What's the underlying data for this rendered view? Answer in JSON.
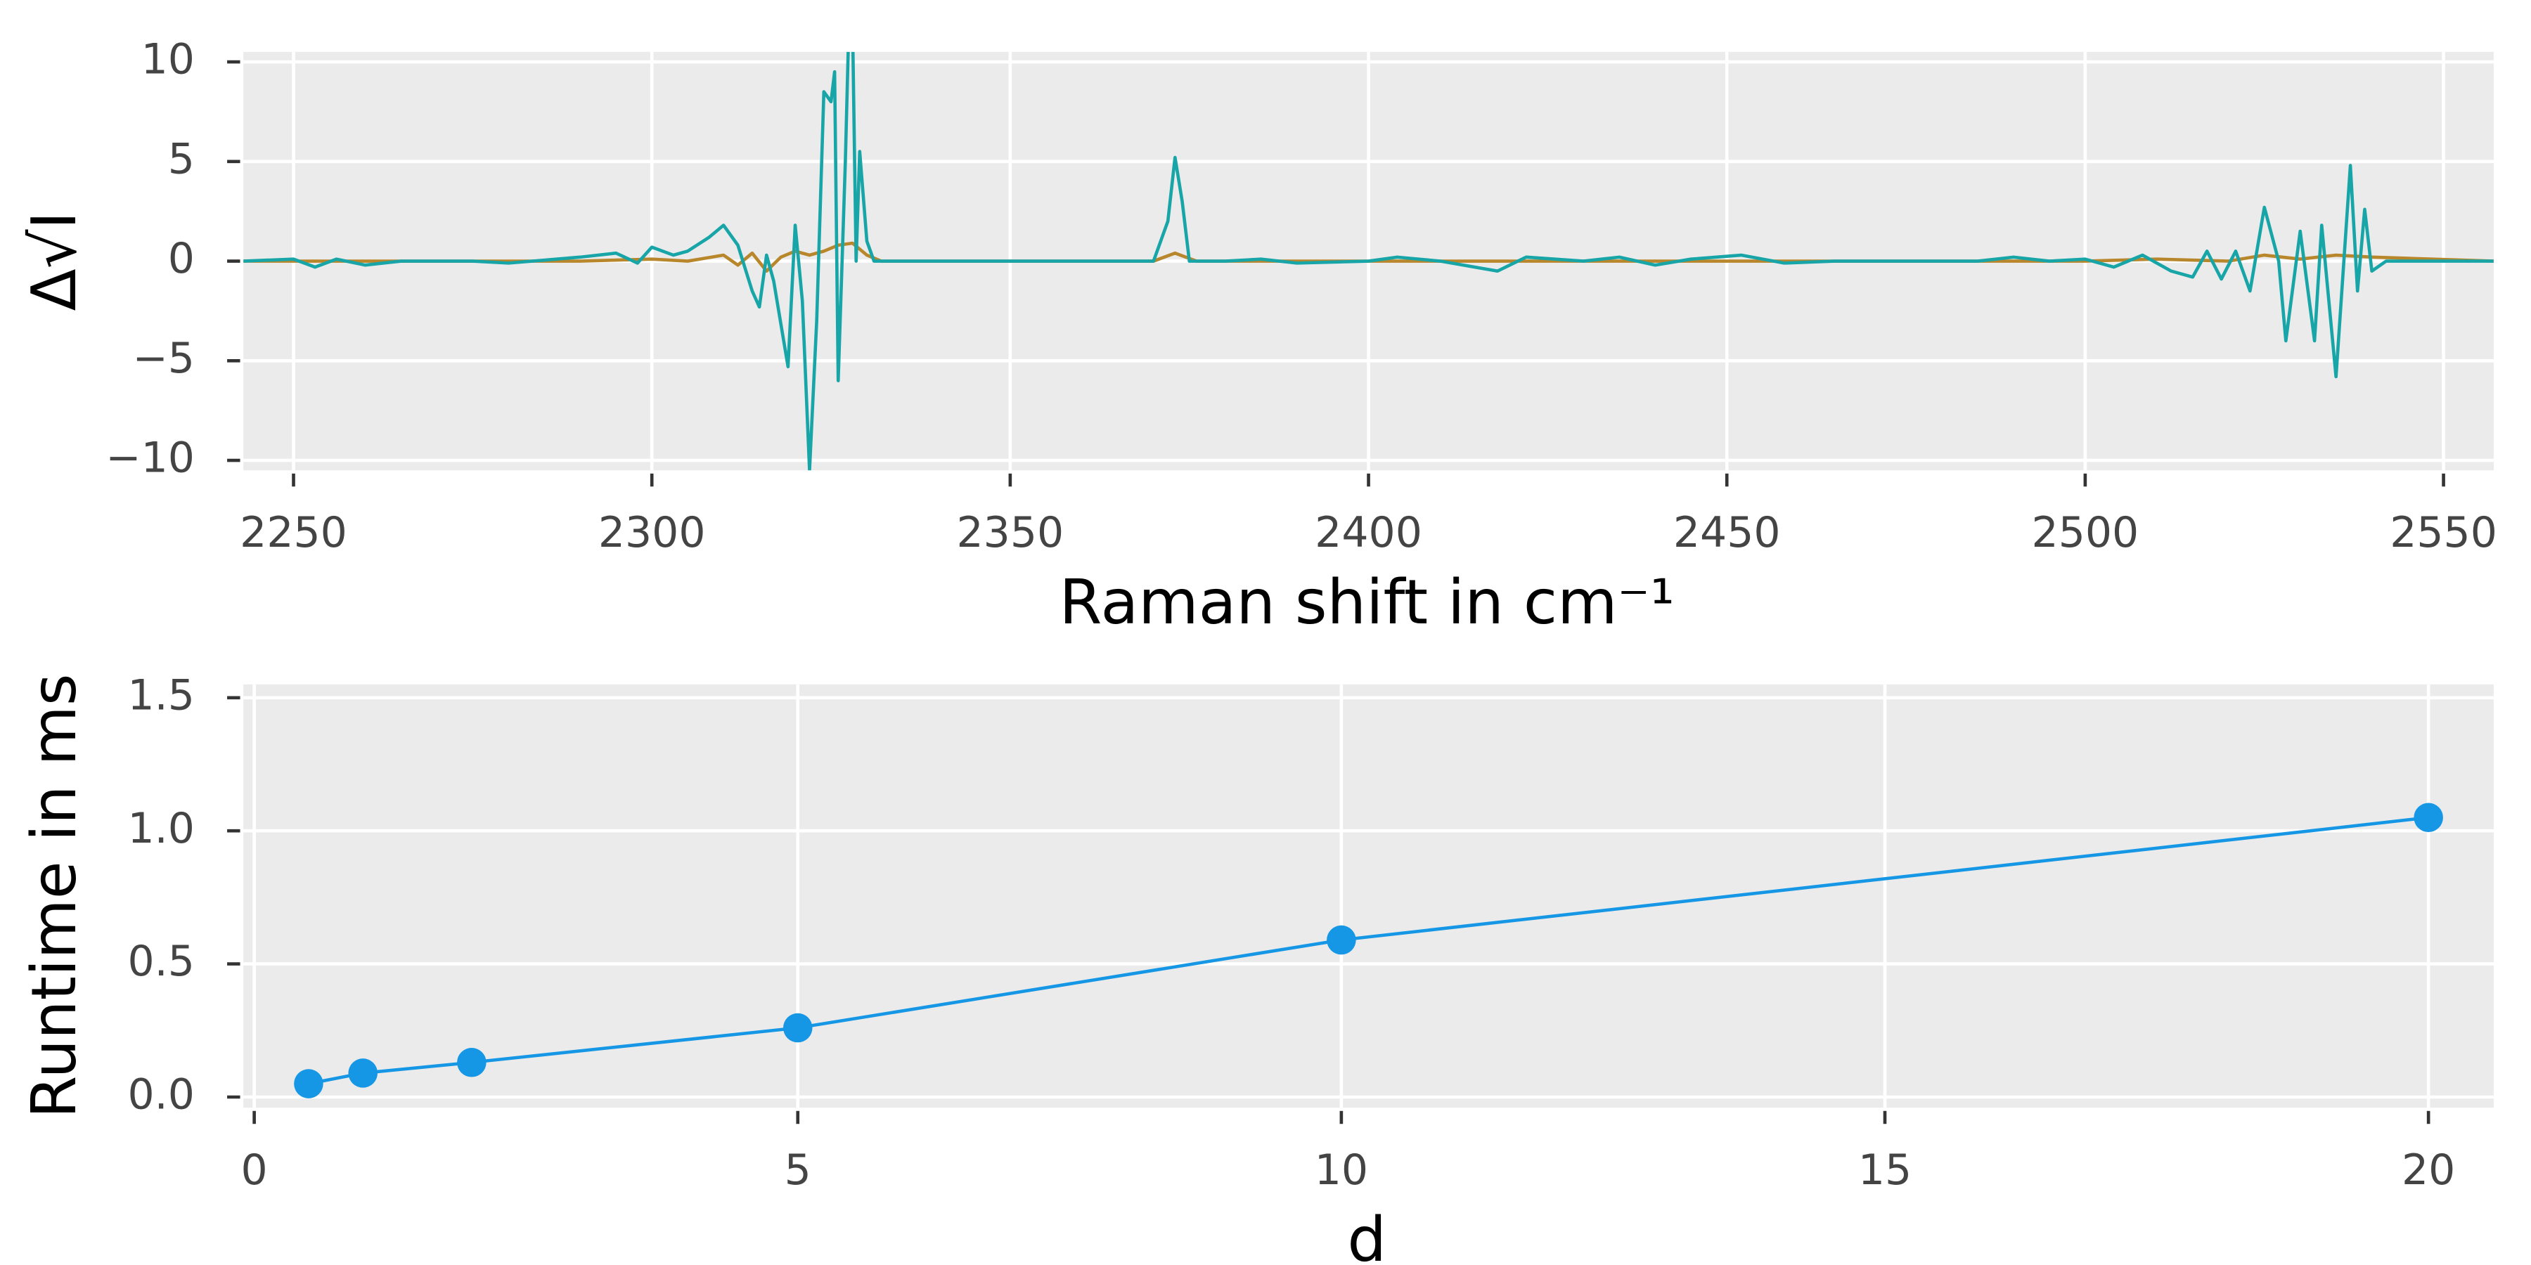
{
  "chart_data": [
    {
      "type": "line",
      "xlabel": "Raman shift in cm⁻¹",
      "ylabel": "Δ√I",
      "xlim": [
        2243,
        2557
      ],
      "ylim": [
        -10.5,
        10.5
      ],
      "xticks": [
        2250,
        2300,
        2350,
        2400,
        2450,
        2500,
        2550
      ],
      "yticks": [
        {
          "value": -10,
          "label": "−10"
        },
        {
          "value": -5,
          "label": "−5"
        },
        0,
        5,
        10
      ],
      "grid": true,
      "series": [
        {
          "color": "#b8862b",
          "x": [
            2243,
            2290,
            2300,
            2305,
            2310,
            2312,
            2314,
            2316,
            2318,
            2320,
            2322,
            2324,
            2326,
            2328,
            2330,
            2332,
            2370,
            2373,
            2376,
            2500,
            2510,
            2520,
            2525,
            2530,
            2535,
            2540,
            2557
          ],
          "values": [
            0,
            0,
            0.1,
            0,
            0.3,
            -0.2,
            0.4,
            -0.5,
            0.2,
            0.5,
            0.3,
            0.5,
            0.8,
            0.9,
            0.3,
            0,
            0,
            0.4,
            0,
            0,
            0.1,
            0,
            0.3,
            0.1,
            0.3,
            0.2,
            0
          ]
        },
        {
          "color": "#17a5a8",
          "x": [
            2243,
            2250,
            2253,
            2256,
            2260,
            2265,
            2275,
            2280,
            2290,
            2295,
            2298,
            2300,
            2303,
            2305,
            2308,
            2310,
            2312,
            2314,
            2315,
            2316,
            2317,
            2319,
            2320,
            2321,
            2322,
            2323,
            2324,
            2325,
            2325.5,
            2326,
            2327,
            2327.5,
            2328,
            2328.5,
            2329,
            2330,
            2331,
            2332,
            2340,
            2360,
            2370,
            2372,
            2373,
            2374,
            2375,
            2380,
            2385,
            2390,
            2400,
            2404,
            2410,
            2418,
            2422,
            2430,
            2435,
            2440,
            2445,
            2452,
            2458,
            2465,
            2475,
            2485,
            2490,
            2495,
            2500,
            2504,
            2508,
            2512,
            2515,
            2517,
            2519,
            2521,
            2523,
            2525,
            2527,
            2528,
            2530,
            2532,
            2533,
            2535,
            2537,
            2538,
            2539,
            2540,
            2542,
            2557
          ],
          "values": [
            0,
            0.1,
            -0.3,
            0.1,
            -0.2,
            0,
            0,
            -0.1,
            0.2,
            0.4,
            -0.1,
            0.7,
            0.3,
            0.5,
            1.2,
            1.8,
            0.8,
            -1.5,
            -2.3,
            0.3,
            -1,
            -5.3,
            1.8,
            -2,
            -10.5,
            -3,
            8.5,
            8,
            9.5,
            -6,
            5,
            12,
            12,
            0,
            5.5,
            1,
            0,
            0,
            0,
            0,
            0,
            2,
            5.2,
            3,
            0,
            0,
            0.1,
            -0.1,
            0,
            0.2,
            0,
            -0.5,
            0.2,
            0,
            0.2,
            -0.2,
            0.1,
            0.3,
            -0.1,
            0,
            0,
            0,
            0.2,
            0,
            0.1,
            -0.3,
            0.3,
            -0.5,
            -0.8,
            0.5,
            -0.9,
            0.5,
            -1.5,
            2.7,
            0,
            -4,
            1.5,
            -4,
            1.8,
            -5.8,
            4.8,
            -1.5,
            2.6,
            -0.5,
            0,
            0
          ]
        }
      ]
    },
    {
      "type": "line",
      "xlabel": "d",
      "ylabel": "Runtime in ms",
      "xlim": [
        -0.1,
        20.6
      ],
      "ylim": [
        -0.04,
        1.55
      ],
      "xticks": [
        0,
        5,
        10,
        15,
        20
      ],
      "yticks": [
        0.0,
        0.5,
        1.0,
        1.5
      ],
      "grid": true,
      "markers": true,
      "series": [
        {
          "color": "#1597e5",
          "x": [
            0.5,
            1,
            2,
            5,
            10,
            20
          ],
          "values": [
            0.05,
            0.09,
            0.13,
            0.26,
            0.59,
            1.05
          ]
        }
      ]
    }
  ]
}
